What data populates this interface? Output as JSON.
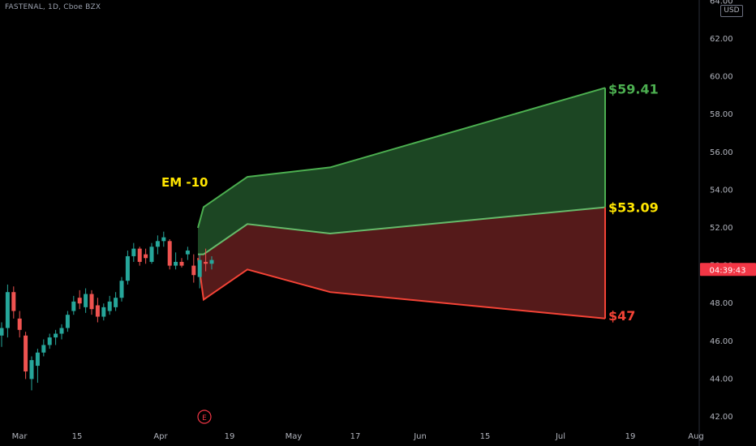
{
  "header": {
    "symbol": "FASTENAL, 1D, Cboe BZX",
    "currency": "USD"
  },
  "time_badge": "04:39:43",
  "earnings_marker": "E",
  "colors": {
    "background": "#000000",
    "up": "#26a69a",
    "down": "#ef5350",
    "upper_band_line": "#4caf50",
    "upper_band_fill": "#1e4a25",
    "mid_line": "#66bb6a",
    "lower_band_line": "#f44336",
    "lower_band_fill": "#5a1b1b",
    "em_label": "#ffe500",
    "upper_label": "#4caf50",
    "mid_label": "#ffe500",
    "lower_label": "#f44336",
    "axis_text": "#b2b5be",
    "badge": "#f23645"
  },
  "chart_data": {
    "type": "candlestick",
    "ylim": [
      41.5,
      64
    ],
    "y_ticks": [
      "42.00",
      "44.00",
      "46.00",
      "48.00",
      "50.00",
      "52.00",
      "54.00",
      "56.00",
      "58.00",
      "60.00",
      "62.00",
      "64.00"
    ],
    "x_ticks": [
      "Mar",
      "15",
      "Apr",
      "19",
      "May",
      "17",
      "Jun",
      "15",
      "Jul",
      "19",
      "Aug"
    ],
    "candles": [
      {
        "o": 46.3,
        "h": 47.0,
        "l": 45.7,
        "c": 46.7
      },
      {
        "o": 46.7,
        "h": 49.0,
        "l": 46.2,
        "c": 48.6
      },
      {
        "o": 48.6,
        "h": 48.9,
        "l": 47.2,
        "c": 47.6
      },
      {
        "o": 47.2,
        "h": 47.6,
        "l": 46.2,
        "c": 46.6
      },
      {
        "o": 46.3,
        "h": 46.5,
        "l": 44.0,
        "c": 44.4
      },
      {
        "o": 44.0,
        "h": 45.2,
        "l": 43.4,
        "c": 45.0
      },
      {
        "o": 44.7,
        "h": 45.6,
        "l": 43.8,
        "c": 45.4
      },
      {
        "o": 45.4,
        "h": 46.1,
        "l": 45.2,
        "c": 45.8
      },
      {
        "o": 45.8,
        "h": 46.4,
        "l": 45.6,
        "c": 46.2
      },
      {
        "o": 46.2,
        "h": 46.6,
        "l": 45.8,
        "c": 46.4
      },
      {
        "o": 46.4,
        "h": 46.9,
        "l": 46.1,
        "c": 46.7
      },
      {
        "o": 46.7,
        "h": 47.6,
        "l": 46.5,
        "c": 47.4
      },
      {
        "o": 47.6,
        "h": 48.4,
        "l": 47.4,
        "c": 48.1
      },
      {
        "o": 48.3,
        "h": 48.7,
        "l": 47.7,
        "c": 48.0
      },
      {
        "o": 47.8,
        "h": 48.8,
        "l": 47.5,
        "c": 48.5
      },
      {
        "o": 48.5,
        "h": 48.7,
        "l": 47.4,
        "c": 47.7
      },
      {
        "o": 47.9,
        "h": 48.3,
        "l": 47.0,
        "c": 47.3
      },
      {
        "o": 47.3,
        "h": 48.0,
        "l": 47.1,
        "c": 47.8
      },
      {
        "o": 47.6,
        "h": 48.4,
        "l": 47.4,
        "c": 48.1
      },
      {
        "o": 47.8,
        "h": 48.6,
        "l": 47.6,
        "c": 48.3
      },
      {
        "o": 48.3,
        "h": 49.4,
        "l": 48.1,
        "c": 49.2
      },
      {
        "o": 49.2,
        "h": 50.8,
        "l": 49.0,
        "c": 50.5
      },
      {
        "o": 50.5,
        "h": 51.2,
        "l": 50.2,
        "c": 50.9
      },
      {
        "o": 50.9,
        "h": 51.0,
        "l": 50.0,
        "c": 50.2
      },
      {
        "o": 50.6,
        "h": 50.9,
        "l": 50.1,
        "c": 50.4
      },
      {
        "o": 50.2,
        "h": 51.2,
        "l": 50.1,
        "c": 51.0
      },
      {
        "o": 51.0,
        "h": 51.6,
        "l": 50.6,
        "c": 51.3
      },
      {
        "o": 51.3,
        "h": 51.8,
        "l": 51.0,
        "c": 51.5
      },
      {
        "o": 51.3,
        "h": 51.4,
        "l": 49.8,
        "c": 50.0
      },
      {
        "o": 50.0,
        "h": 50.7,
        "l": 49.8,
        "c": 50.2
      },
      {
        "o": 50.2,
        "h": 50.4,
        "l": 49.9,
        "c": 50.0
      },
      {
        "o": 50.6,
        "h": 51.0,
        "l": 50.3,
        "c": 50.8
      },
      {
        "o": 50.0,
        "h": 50.6,
        "l": 49.1,
        "c": 49.5
      },
      {
        "o": 49.4,
        "h": 50.6,
        "l": 48.8,
        "c": 50.3
      },
      {
        "o": 50.2,
        "h": 50.9,
        "l": 49.7,
        "c": 50.1
      },
      {
        "o": 50.1,
        "h": 50.5,
        "l": 49.8,
        "c": 50.3
      }
    ],
    "expected_move": {
      "label": "EM -10",
      "upper": [
        52.0,
        53.1,
        54.7,
        55.2,
        59.41
      ],
      "mid": [
        50.6,
        50.6,
        52.2,
        51.7,
        53.09
      ],
      "lower": [
        50.4,
        48.2,
        49.8,
        48.6,
        47.2
      ],
      "upper_label": "$59.41",
      "mid_label": "$53.09",
      "lower_label": "$47"
    },
    "current_price": 49.8
  }
}
